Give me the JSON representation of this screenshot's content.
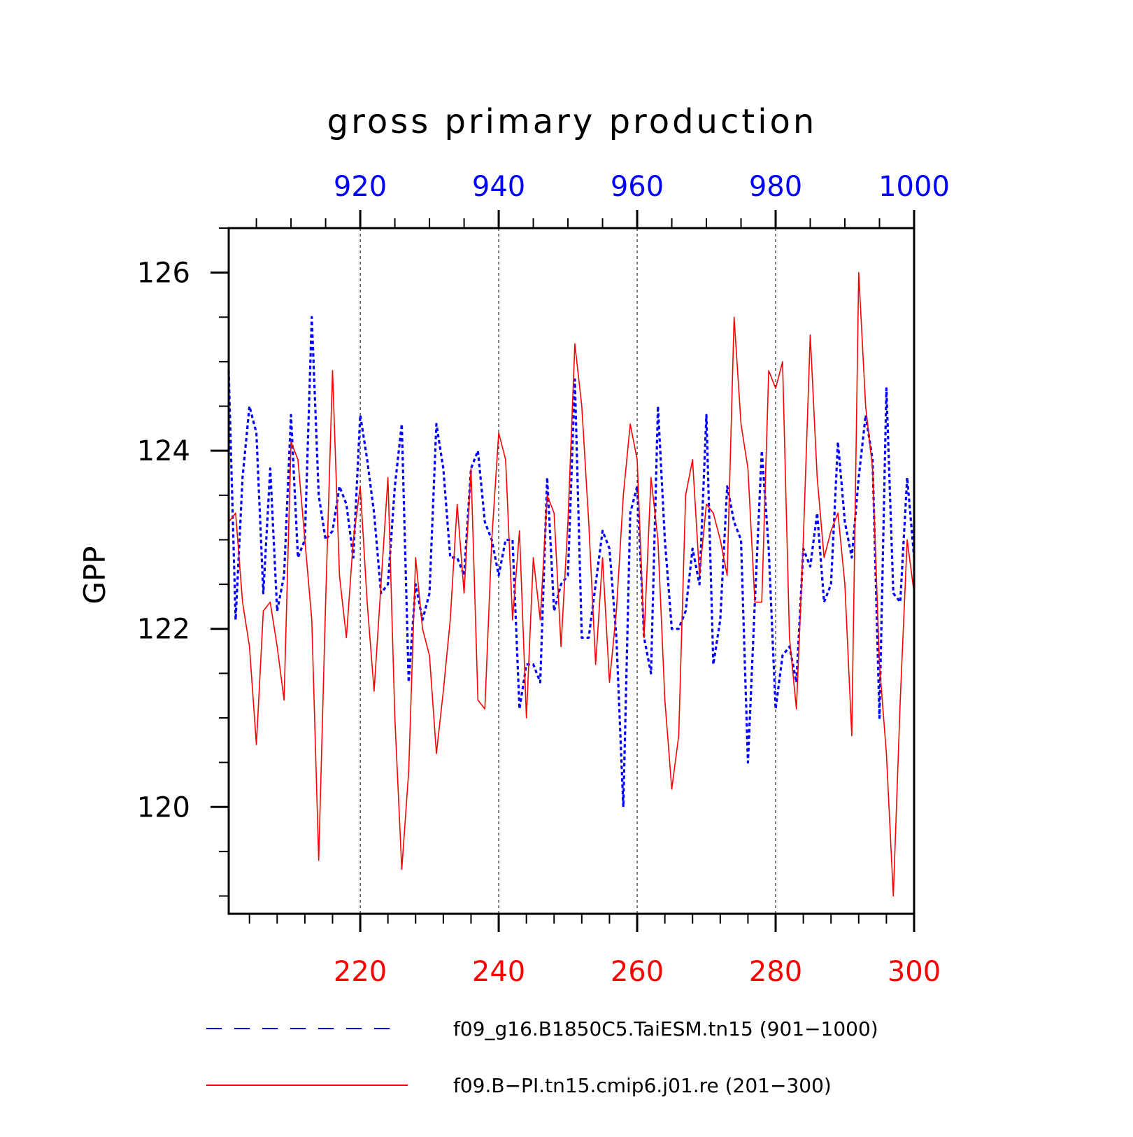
{
  "chart_data": {
    "type": "line",
    "title": "gross primary production",
    "ylabel": "GPP",
    "xlabel": "",
    "ylim": [
      118.8,
      126.5
    ],
    "y_ticks": [
      "120",
      "122",
      "124",
      "126"
    ],
    "y_tick_values": [
      120,
      122,
      124,
      126
    ],
    "y_minor_step": 0.5,
    "bottom_axis": {
      "range": [
        201,
        300
      ],
      "tick_values": [
        220,
        240,
        260,
        280,
        300
      ],
      "tick_labels": [
        "220",
        "240",
        "260",
        "280",
        "300"
      ],
      "minor_step": 4,
      "color": "#ff0000"
    },
    "top_axis": {
      "range": [
        901,
        1000
      ],
      "tick_values": [
        920,
        940,
        960,
        980,
        1000
      ],
      "tick_labels": [
        "920",
        "940",
        "960",
        "980",
        "1000"
      ],
      "minor_step": 5,
      "color": "#0000ff"
    },
    "grid": "vertical dashed at major ticks",
    "legend_placement": "bottom",
    "series": [
      {
        "name": "f09_g16.B1850C5.TaiESM.tn15 (901−1000)",
        "axis": "top",
        "color": "#0000ff",
        "style": "dashed",
        "x_start": 901,
        "values": [
          124.9,
          122.1,
          123.7,
          124.5,
          124.2,
          122.4,
          123.8,
          122.2,
          122.6,
          124.4,
          122.8,
          123.0,
          125.5,
          123.5,
          123.0,
          123.1,
          123.6,
          123.4,
          122.8,
          124.4,
          123.9,
          123.3,
          122.4,
          122.5,
          123.6,
          124.3,
          121.4,
          122.5,
          122.1,
          122.4,
          124.3,
          123.8,
          122.8,
          122.8,
          122.6,
          123.8,
          124.0,
          123.2,
          123.0,
          122.6,
          123.0,
          123.0,
          121.1,
          121.6,
          121.6,
          121.4,
          123.7,
          122.2,
          122.5,
          122.6,
          124.8,
          121.9,
          121.9,
          122.5,
          123.1,
          122.9,
          121.9,
          120.0,
          123.3,
          123.6,
          121.9,
          121.5,
          124.5,
          123.0,
          122.0,
          122.0,
          122.2,
          122.9,
          122.5,
          124.4,
          121.6,
          122.1,
          123.6,
          123.2,
          123.0,
          120.5,
          122.3,
          124.0,
          122.9,
          121.1,
          121.7,
          121.8,
          121.4,
          122.9,
          122.7,
          123.3,
          122.3,
          122.5,
          124.1,
          123.2,
          122.8,
          123.7,
          124.4,
          123.9,
          121.0,
          124.7,
          122.4,
          122.3,
          123.7,
          122.8
        ]
      },
      {
        "name": "f09.B−PI.tn15.cmip6.j01.re (201−300)",
        "axis": "bottom",
        "color": "#ff0000",
        "style": "solid",
        "x_start": 201,
        "values": [
          123.2,
          123.3,
          122.3,
          121.8,
          120.7,
          122.2,
          122.3,
          121.8,
          121.2,
          124.1,
          123.9,
          123.0,
          122.1,
          119.4,
          122.3,
          124.9,
          122.6,
          121.9,
          123.0,
          123.6,
          122.3,
          121.3,
          122.5,
          123.7,
          121.0,
          119.3,
          120.4,
          122.8,
          122.0,
          121.7,
          120.6,
          121.3,
          122.1,
          123.4,
          122.4,
          123.8,
          121.2,
          121.1,
          123.0,
          124.2,
          123.9,
          122.1,
          123.1,
          121.0,
          122.8,
          122.1,
          123.5,
          123.3,
          121.8,
          123.2,
          125.2,
          124.5,
          123.2,
          121.6,
          122.8,
          121.4,
          122.2,
          123.5,
          124.3,
          123.9,
          121.9,
          123.7,
          123.0,
          121.2,
          120.2,
          120.8,
          123.5,
          123.9,
          122.6,
          123.4,
          123.3,
          123.0,
          122.6,
          125.5,
          124.3,
          123.8,
          122.3,
          122.3,
          124.9,
          124.7,
          125.0,
          121.9,
          121.1,
          123.0,
          125.3,
          123.7,
          122.8,
          123.1,
          123.3,
          122.5,
          120.8,
          126.0,
          124.5,
          123.8,
          121.6,
          120.6,
          119.0,
          121.2,
          123.0,
          122.4
        ]
      }
    ]
  }
}
